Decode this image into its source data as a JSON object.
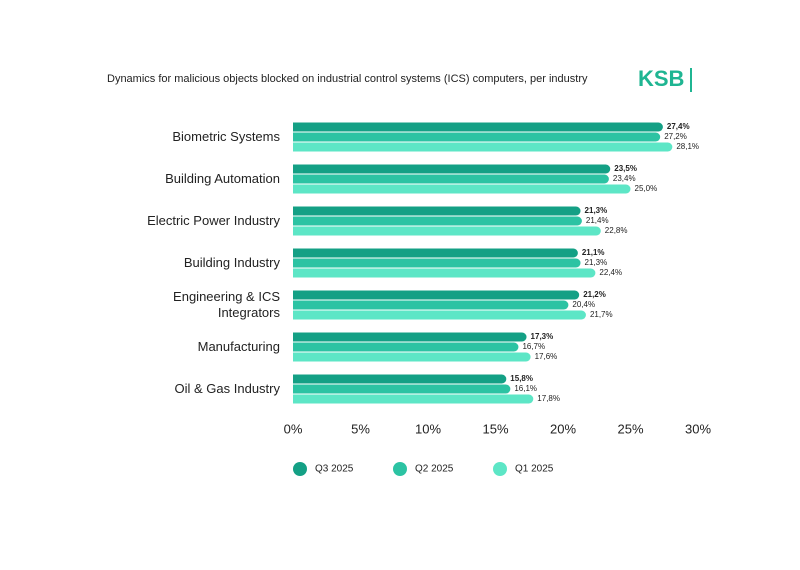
{
  "chart_data": {
    "type": "bar",
    "orientation": "horizontal",
    "title": "Dynamics for malicious objects blocked on industrial control systems (ICS) computers, per industry",
    "logo": "KSB",
    "categories": [
      "Biometric Systems",
      "Building Automation",
      "Electric Power Industry",
      "Building Industry",
      "Engineering & ICS Integrators",
      "Manufacturing",
      "Oil & Gas Industry"
    ],
    "series": [
      {
        "name": "Q3 2025",
        "color": "#14a085",
        "values": [
          27.4,
          23.5,
          21.3,
          21.1,
          21.2,
          17.3,
          15.8
        ],
        "value_labels": [
          "27,4%",
          "23,5%",
          "21,3%",
          "21,1%",
          "21,2%",
          "17,3%",
          "15,8%"
        ]
      },
      {
        "name": "Q2 2025",
        "color": "#2cc3a3",
        "values": [
          27.2,
          23.4,
          21.4,
          21.3,
          20.4,
          16.7,
          16.1
        ],
        "value_labels": [
          "27,2%",
          "23,4%",
          "21,4%",
          "21,3%",
          "20,4%",
          "16,7%",
          "16,1%"
        ]
      },
      {
        "name": "Q1 2025",
        "color": "#5de6c6",
        "values": [
          28.1,
          25.0,
          22.8,
          22.4,
          21.7,
          17.6,
          17.8
        ],
        "value_labels": [
          "28,1%",
          "25,0%",
          "22,8%",
          "22,4%",
          "21,7%",
          "17,6%",
          "17,8%"
        ]
      }
    ],
    "xlim": [
      0,
      30
    ],
    "xticks": [
      {
        "value": 0,
        "label": "0%"
      },
      {
        "value": 5,
        "label": "5%"
      },
      {
        "value": 10,
        "label": "10%"
      },
      {
        "value": 15,
        "label": "15%"
      },
      {
        "value": 20,
        "label": "20%"
      },
      {
        "value": 25,
        "label": "25%"
      },
      {
        "value": 30,
        "label": "30%"
      }
    ],
    "grid": false
  }
}
